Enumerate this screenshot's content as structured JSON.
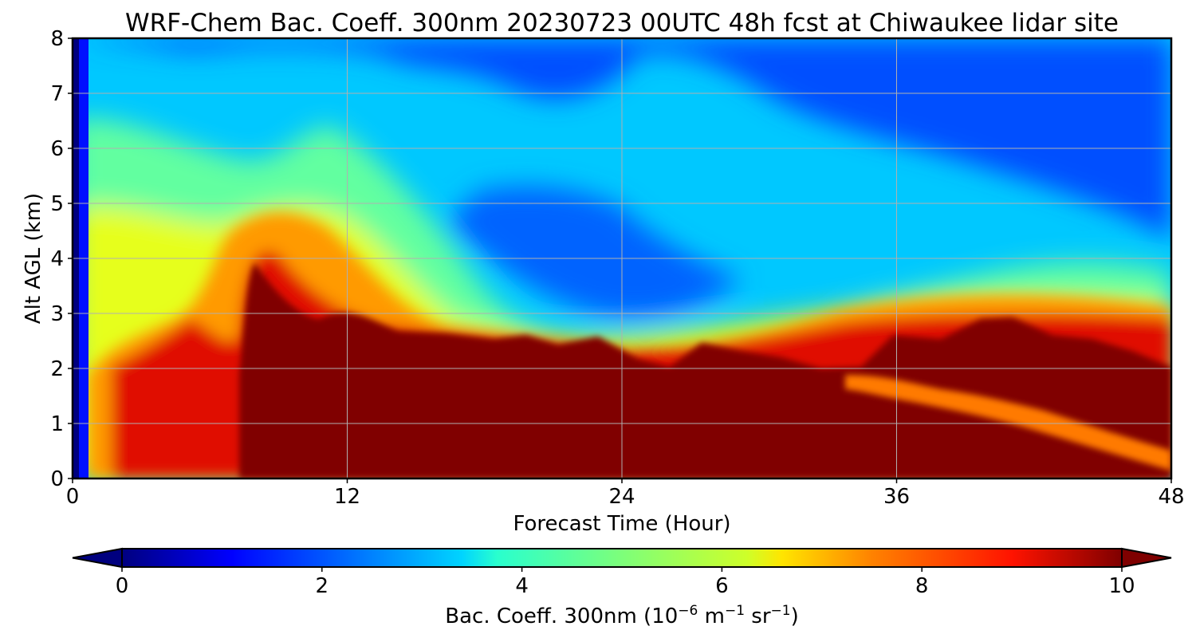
{
  "chart_data": {
    "type": "heatmap",
    "title": "WRF-Chem Bac. Coeff. 300nm  20230723 00UTC 48h fcst at Chiwaukee lidar site",
    "xlabel": "Forecast Time (Hour)",
    "ylabel": "Alt AGL (km)",
    "xlim": [
      0,
      48
    ],
    "ylim": [
      0,
      8
    ],
    "x_ticks": [
      "0",
      "12",
      "24",
      "36",
      "48"
    ],
    "y_ticks": [
      "0",
      "1",
      "2",
      "3",
      "4",
      "5",
      "6",
      "7",
      "8"
    ],
    "grid": true,
    "colormap": "jet",
    "colorbar": {
      "label_main": "Bac. Coeff. 300nm  (10",
      "label_exp1": "−6",
      "label_mid": " m",
      "label_exp2": "−1",
      "label_mid2": " sr",
      "label_exp3": "−1",
      "label_end": ")",
      "range": [
        0,
        10
      ],
      "extend": "both",
      "ticks": [
        "0",
        "2",
        "4",
        "6",
        "8",
        "10"
      ]
    },
    "x": [
      0,
      0.5,
      1,
      2,
      3,
      4,
      5,
      6,
      7,
      7.5,
      8,
      9,
      10,
      11,
      12,
      14,
      16,
      18,
      20,
      22,
      23,
      24,
      26,
      28,
      30,
      32,
      34,
      35,
      36,
      38,
      40,
      42,
      44,
      46,
      48
    ],
    "features": {
      "high_layer_top_km": [
        0,
        0,
        0,
        2.3,
        2.1,
        2.3,
        3.0,
        2.4,
        3.3,
        4.2,
        4.4,
        4.1,
        4.0,
        3.8,
        3.4,
        3.0,
        2.9,
        2.8,
        2.8,
        2.7,
        2.7,
        2.65,
        2.6,
        2.6,
        2.5,
        2.5,
        2.9,
        3.2,
        3.0,
        3.0,
        3.0,
        2.9,
        2.8,
        2.7,
        2.5
      ],
      "saturated_top_km": [
        0,
        0,
        0,
        0.1,
        0.1,
        0.2,
        0.4,
        0.5,
        0.3,
        2.0,
        3.8,
        3.2,
        2.9,
        3.1,
        3.0,
        2.7,
        2.6,
        2.6,
        2.6,
        2.4,
        2.55,
        2.3,
        2.1,
        2.4,
        2.3,
        2.0,
        2.0,
        1.9,
        2.6,
        2.6,
        2.85,
        2.6,
        2.4,
        2.1,
        2.0
      ],
      "saturated_gap_km": [
        [
          0,
          0
        ],
        [
          0,
          0
        ],
        [
          0,
          0
        ],
        [
          0,
          0
        ],
        [
          0,
          0
        ],
        [
          0,
          0
        ],
        [
          0,
          0
        ],
        [
          0,
          0
        ],
        [
          0,
          0
        ],
        [
          0,
          0
        ],
        [
          0,
          0
        ],
        [
          0,
          0
        ],
        [
          0,
          0
        ],
        [
          0,
          0
        ],
        [
          0,
          0
        ],
        [
          0,
          0
        ],
        [
          0,
          0
        ],
        [
          0,
          0
        ],
        [
          0,
          0
        ],
        [
          0,
          0
        ],
        [
          0,
          0
        ],
        [
          0,
          0
        ],
        [
          0,
          0
        ],
        [
          0,
          0
        ],
        [
          0,
          0
        ],
        [
          0,
          0
        ],
        [
          0,
          0
        ],
        [
          1.7,
          2.0
        ],
        [
          1.5,
          2.1
        ],
        [
          1.2,
          1.9
        ],
        [
          0.9,
          1.6
        ],
        [
          0.8,
          1.3
        ],
        [
          0.6,
          1.1
        ],
        [
          0.35,
          0.7
        ],
        [
          0.15,
          0.4
        ]
      ]
    }
  }
}
